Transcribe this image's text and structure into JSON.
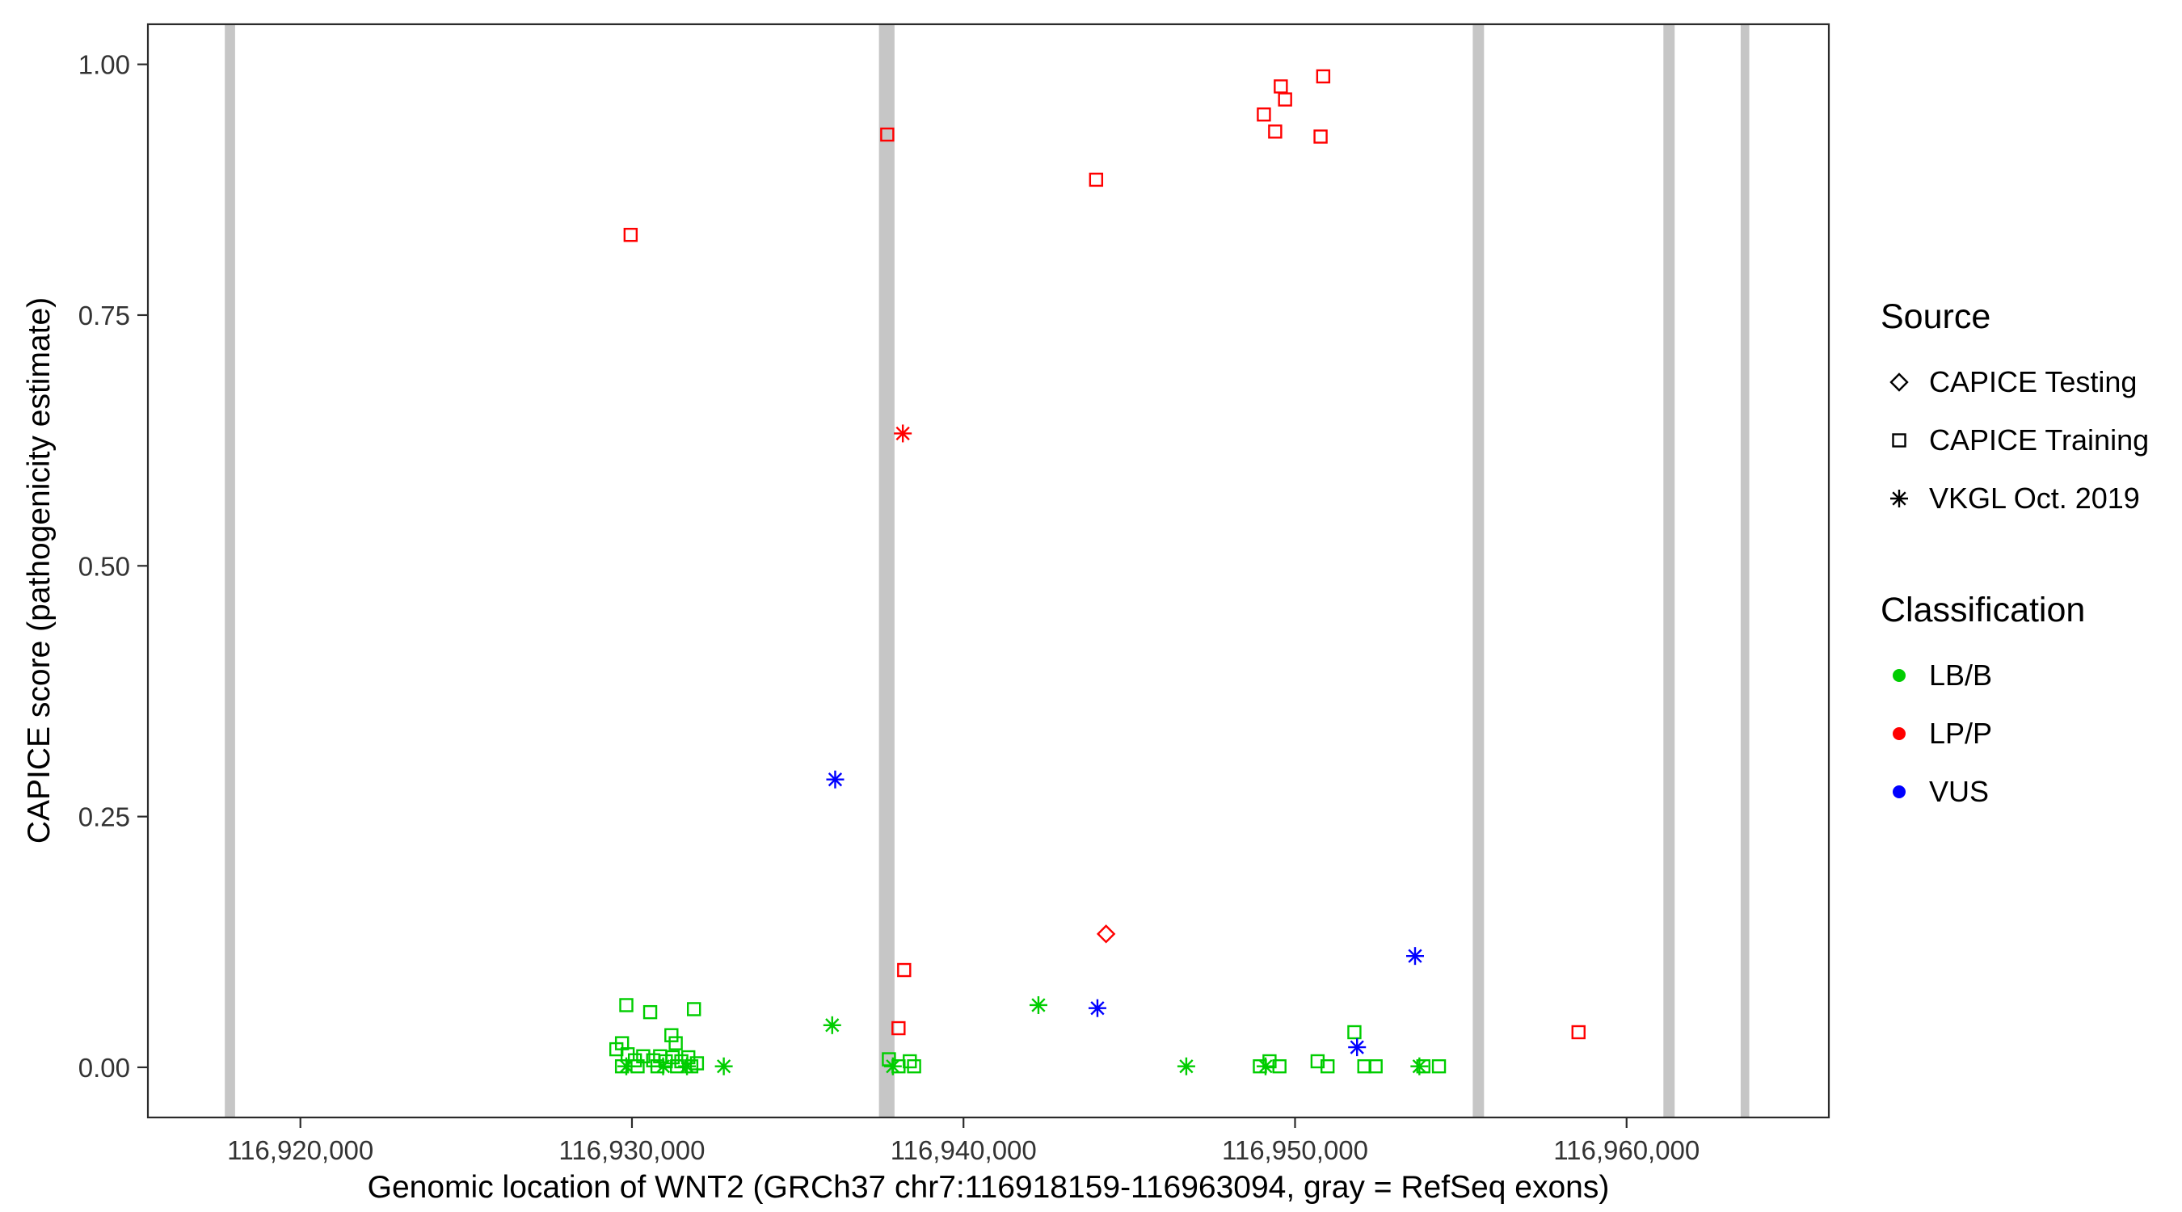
{
  "chart_data": {
    "type": "scatter",
    "title": "",
    "xlabel": "Genomic location of WNT2 (GRCh37 chr7:116918159-116963094, gray = RefSeq exons)",
    "ylabel": "CAPICE score (pathogenicity estimate)",
    "x_axis": {
      "lim": [
        116915400,
        116966100
      ],
      "ticks": [
        {
          "value": 116920000,
          "label": "116,920,000"
        },
        {
          "value": 116930000,
          "label": "116,930,000"
        },
        {
          "value": 116940000,
          "label": "116,940,000"
        },
        {
          "value": 116950000,
          "label": "116,950,000"
        },
        {
          "value": 116960000,
          "label": "116,960,000"
        }
      ]
    },
    "y_axis": {
      "lim": [
        -0.05,
        1.04
      ],
      "ticks": [
        {
          "value": 0.0,
          "label": "0.00"
        },
        {
          "value": 0.25,
          "label": "0.25"
        },
        {
          "value": 0.5,
          "label": "0.50"
        },
        {
          "value": 0.75,
          "label": "0.75"
        },
        {
          "value": 1.0,
          "label": "1.00"
        }
      ]
    },
    "exons": {
      "color": "#c6c6c6",
      "ranges": [
        [
          116917720,
          116918030
        ],
        [
          116937450,
          116937920
        ],
        [
          116955360,
          116955700
        ],
        [
          116961110,
          116961450
        ],
        [
          116963440,
          116963700
        ]
      ]
    },
    "series": [
      {
        "id": "training-lpp",
        "source": "CAPICE Training",
        "classification": "LP/P",
        "marker": "square",
        "color": "#ff0000",
        "points": [
          [
            116929960,
            0.83
          ],
          [
            116937700,
            0.93
          ],
          [
            116944000,
            0.885
          ],
          [
            116949060,
            0.95
          ],
          [
            116949400,
            0.933
          ],
          [
            116949570,
            0.978
          ],
          [
            116949700,
            0.965
          ],
          [
            116950850,
            0.988
          ],
          [
            116950770,
            0.928
          ],
          [
            116938210,
            0.097
          ],
          [
            116938040,
            0.039
          ],
          [
            116958550,
            0.035
          ]
        ]
      },
      {
        "id": "training-lbb",
        "source": "CAPICE Training",
        "classification": "LB/B",
        "marker": "square",
        "color": "#00cd00",
        "points": [
          [
            116929830,
            0.062
          ],
          [
            116930550,
            0.055
          ],
          [
            116931870,
            0.058
          ],
          [
            116929700,
            0.024
          ],
          [
            116931190,
            0.032
          ],
          [
            116931320,
            0.024
          ],
          [
            116929530,
            0.018
          ],
          [
            116929870,
            0.013
          ],
          [
            116930090,
            0.007
          ],
          [
            116930340,
            0.011
          ],
          [
            116930640,
            0.007
          ],
          [
            116930850,
            0.011
          ],
          [
            116931020,
            0.006
          ],
          [
            116931230,
            0.01
          ],
          [
            116931490,
            0.006
          ],
          [
            116931700,
            0.01
          ],
          [
            116931960,
            0.004
          ],
          [
            116929700,
            0.001
          ],
          [
            116930170,
            0.001
          ],
          [
            116930770,
            0.001
          ],
          [
            116931360,
            0.001
          ],
          [
            116931790,
            0.001
          ],
          [
            116937750,
            0.008
          ],
          [
            116938040,
            0.001
          ],
          [
            116938380,
            0.006
          ],
          [
            116938510,
            0.001
          ],
          [
            116948940,
            0.001
          ],
          [
            116949230,
            0.006
          ],
          [
            116949530,
            0.001
          ],
          [
            116950680,
            0.006
          ],
          [
            116950980,
            0.001
          ],
          [
            116951790,
            0.035
          ],
          [
            116952090,
            0.001
          ],
          [
            116952430,
            0.001
          ],
          [
            116953870,
            0.001
          ],
          [
            116954340,
            0.001
          ]
        ]
      },
      {
        "id": "testing-lpp",
        "source": "CAPICE Testing",
        "classification": "LP/P",
        "marker": "diamond",
        "color": "#ff0000",
        "points": [
          [
            116944300,
            0.133
          ]
        ]
      },
      {
        "id": "vkgl-lpp",
        "source": "VKGL Oct. 2019",
        "classification": "LP/P",
        "marker": "asterisk",
        "color": "#ff0000",
        "points": [
          [
            116938170,
            0.632
          ]
        ]
      },
      {
        "id": "vkgl-vus",
        "source": "VKGL Oct. 2019",
        "classification": "VUS",
        "marker": "asterisk",
        "color": "#0000ff",
        "points": [
          [
            116936130,
            0.287
          ],
          [
            116944040,
            0.059
          ],
          [
            116953620,
            0.111
          ],
          [
            116951870,
            0.02
          ]
        ]
      },
      {
        "id": "vkgl-lbb",
        "source": "VKGL Oct. 2019",
        "classification": "LB/B",
        "marker": "asterisk",
        "color": "#00cd00",
        "points": [
          [
            116929830,
            0.001
          ],
          [
            116930940,
            0.001
          ],
          [
            116931660,
            0.001
          ],
          [
            116932770,
            0.001
          ],
          [
            116936040,
            0.042
          ],
          [
            116937870,
            0.001
          ],
          [
            116942260,
            0.062
          ],
          [
            116946720,
            0.001
          ],
          [
            116949110,
            0.001
          ],
          [
            116953750,
            0.001
          ]
        ]
      }
    ]
  },
  "legend": {
    "source": {
      "title": "Source",
      "items": [
        {
          "label": "CAPICE Testing",
          "marker": "diamond"
        },
        {
          "label": "CAPICE Training",
          "marker": "square"
        },
        {
          "label": "VKGL Oct. 2019",
          "marker": "asterisk"
        }
      ]
    },
    "classification": {
      "title": "Classification",
      "items": [
        {
          "label": "LB/B",
          "color": "#00cd00"
        },
        {
          "label": "LP/P",
          "color": "#ff0000"
        },
        {
          "label": "VUS",
          "color": "#0000ff"
        }
      ]
    }
  }
}
